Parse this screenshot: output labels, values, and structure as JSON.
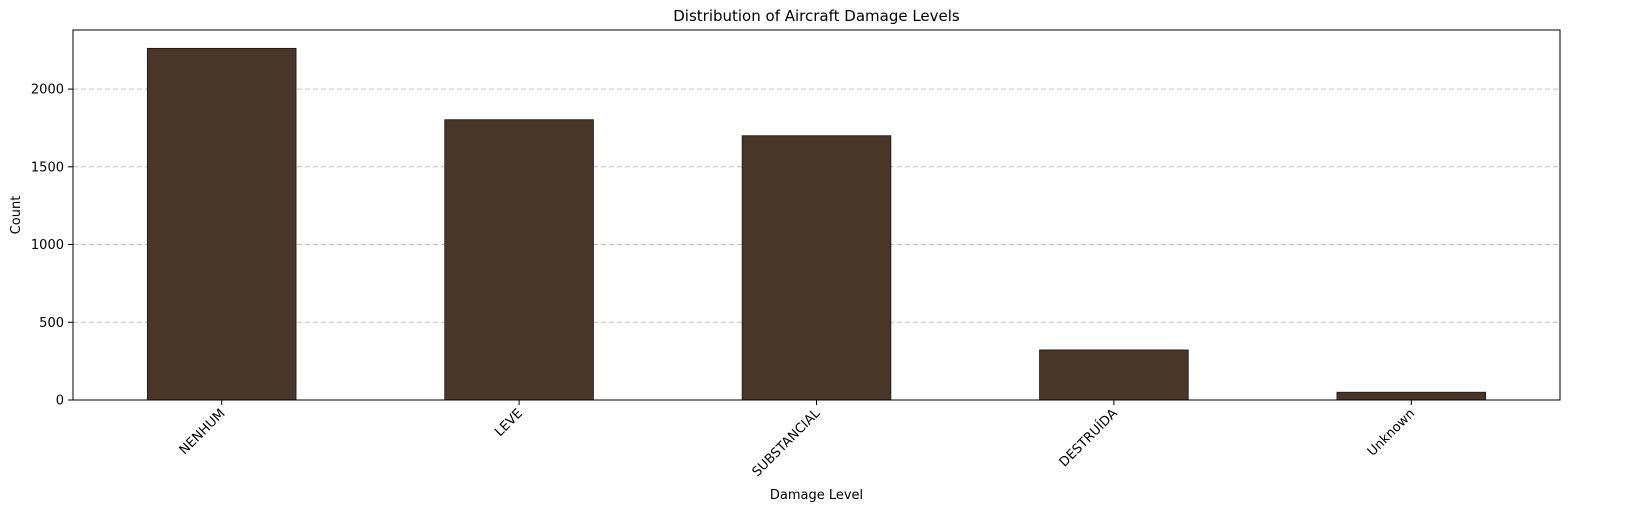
{
  "chart_data": {
    "type": "bar",
    "title": "Distribution of Aircraft Damage Levels",
    "xlabel": "Damage Level",
    "ylabel": "Count",
    "categories": [
      "NENHUM",
      "LEVE",
      "SUBSTANCIAL",
      "DESTRUÍDA",
      "Unknown"
    ],
    "values": [
      2262,
      1803,
      1700,
      322,
      50
    ],
    "ylim": [
      0,
      2380
    ],
    "yticks": [
      0,
      500,
      1000,
      1500,
      2000
    ],
    "grid": "y-dashed",
    "legend": "none",
    "bar_color": "#483728",
    "bar_edge_color": "#1a1410",
    "grid_color": "#c0c0c0",
    "x_tick_rotation": 45
  }
}
